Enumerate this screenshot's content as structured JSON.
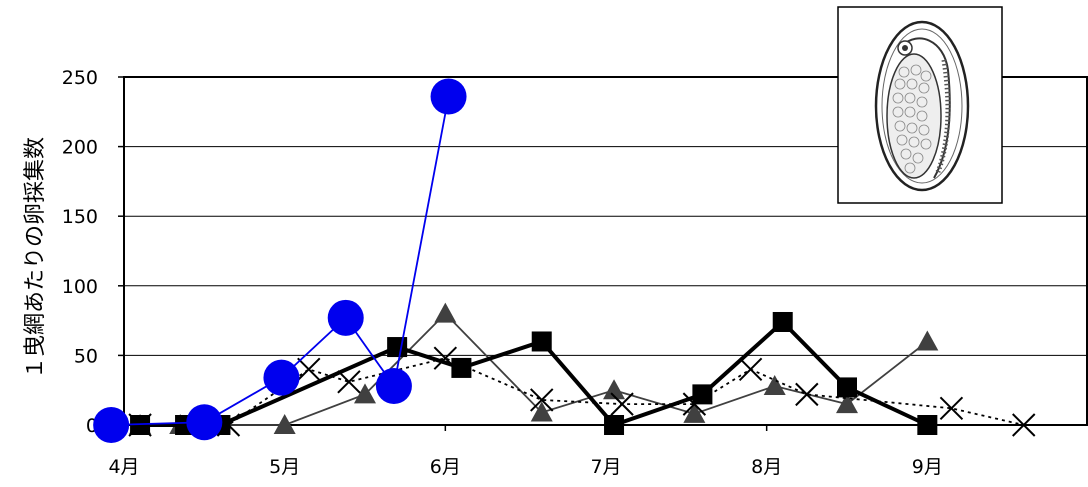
{
  "chart_data": {
    "type": "line",
    "ylabel": "１曳網あたりの卵採集数",
    "ylim": [
      0,
      250
    ],
    "yticks": [
      0,
      50,
      100,
      150,
      200,
      250
    ],
    "x_axis": "months",
    "xticks": [
      {
        "label": "4月",
        "value": 4.0
      },
      {
        "label": "5月",
        "value": 5.0
      },
      {
        "label": "6月",
        "value": 6.0
      },
      {
        "label": "7月",
        "value": 7.0
      },
      {
        "label": "8月",
        "value": 8.0
      },
      {
        "label": "9月",
        "value": 9.0
      }
    ],
    "xlim": [
      4.0,
      10.0
    ],
    "grid": true,
    "inset_icon": "fish-egg-illustration",
    "series": [
      {
        "marker": "circle",
        "color": "#0000ee",
        "line": "solid-thin",
        "points": [
          [
            3.92,
            0
          ],
          [
            4.5,
            2
          ],
          [
            4.98,
            34
          ],
          [
            5.38,
            77
          ],
          [
            5.68,
            28
          ],
          [
            6.02,
            236
          ]
        ]
      },
      {
        "marker": "square",
        "color": "#000000",
        "line": "solid-thick",
        "points": [
          [
            4.1,
            0
          ],
          [
            4.38,
            0
          ],
          [
            4.6,
            0
          ],
          [
            5.7,
            56
          ],
          [
            6.1,
            41
          ],
          [
            6.6,
            60
          ],
          [
            7.05,
            0
          ],
          [
            7.6,
            22
          ],
          [
            8.1,
            74
          ],
          [
            8.5,
            27
          ],
          [
            9.0,
            0
          ]
        ]
      },
      {
        "marker": "triangle",
        "color": "#404040",
        "line": "solid-thin",
        "points": [
          [
            4.1,
            0
          ],
          [
            4.35,
            0
          ],
          [
            5.0,
            0
          ],
          [
            5.5,
            22
          ],
          [
            6.0,
            80
          ],
          [
            6.6,
            9
          ],
          [
            7.05,
            25
          ],
          [
            7.55,
            8
          ],
          [
            8.05,
            28
          ],
          [
            8.5,
            15
          ],
          [
            9.0,
            60
          ]
        ]
      },
      {
        "marker": "x",
        "color": "#000000",
        "line": "dotted",
        "points": [
          [
            4.1,
            0
          ],
          [
            4.65,
            0
          ],
          [
            5.15,
            40
          ],
          [
            5.4,
            31
          ],
          [
            6.0,
            48
          ],
          [
            6.6,
            18
          ],
          [
            7.1,
            15
          ],
          [
            7.55,
            15
          ],
          [
            7.9,
            40
          ],
          [
            8.25,
            22
          ],
          [
            9.15,
            12
          ],
          [
            9.6,
            0
          ]
        ]
      }
    ]
  }
}
